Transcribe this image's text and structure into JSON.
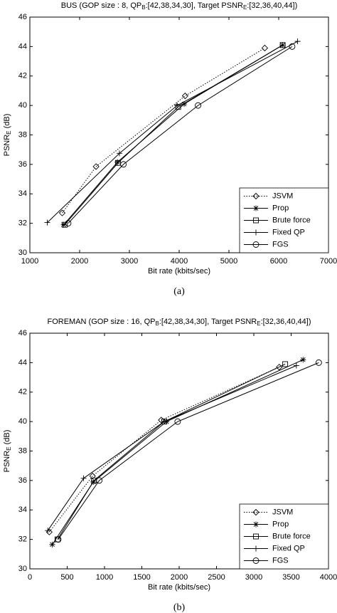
{
  "chart_data": [
    {
      "type": "line",
      "title": [
        "BUS (GOP size : 8, QP",
        "B",
        ":[42,38,34,30], Target PSNR",
        "E",
        ":[32,36,40,44])"
      ],
      "xlabel": "Bit rate (kbits/sec)",
      "ylabel": [
        "PSNR",
        "E",
        " (dB)"
      ],
      "caption": "(a)",
      "xlim": [
        1000,
        7000
      ],
      "xticks": [
        1000,
        2000,
        3000,
        4000,
        5000,
        6000,
        7000
      ],
      "ylim": [
        30,
        46
      ],
      "yticks": [
        30,
        32,
        34,
        36,
        38,
        40,
        42,
        44,
        46
      ],
      "legend": "lower right",
      "series": [
        {
          "name": "JSVM",
          "color": "#000000",
          "linestyle": "dotted",
          "marker": "diamond",
          "x": [
            1650,
            2330,
            4120,
            5720
          ],
          "values": [
            32.7,
            35.85,
            40.65,
            43.9
          ]
        },
        {
          "name": "Prop",
          "color": "#000000",
          "linestyle": "solid",
          "marker": "star",
          "x": [
            1680,
            2760,
            4100,
            6080
          ],
          "values": [
            31.9,
            36.15,
            40.1,
            44.1
          ]
        },
        {
          "name": "Brute force",
          "color": "#000000",
          "linestyle": "solid",
          "marker": "square",
          "x": [
            1700,
            2770,
            3980,
            6080
          ],
          "values": [
            31.9,
            36.1,
            39.9,
            44.1
          ]
        },
        {
          "name": "Fixed QP",
          "color": "#000000",
          "linestyle": "solid",
          "marker": "plus",
          "x": [
            1350,
            2800,
            3960,
            6380
          ],
          "values": [
            32.05,
            36.75,
            40.0,
            44.35
          ]
        },
        {
          "name": "FGS",
          "color": "#000000",
          "linestyle": "solid",
          "marker": "circle",
          "x": [
            1770,
            2880,
            4380,
            6270
          ],
          "values": [
            32.0,
            36.0,
            40.0,
            44.0
          ]
        }
      ]
    },
    {
      "type": "line",
      "title": [
        "FOREMAN (GOP size : 16, QP",
        "B",
        ":[42,38,34,30], Target PSNR",
        "E",
        ":[32,36,40,44])"
      ],
      "xlabel": "Bit rate (kbits/sec)",
      "ylabel": [
        "PSNR",
        "E",
        " (dB)"
      ],
      "caption": "(b)",
      "xlim": [
        0,
        4000
      ],
      "xticks": [
        0,
        500,
        1000,
        1500,
        2000,
        2500,
        3000,
        3500,
        4000
      ],
      "ylim": [
        30,
        46
      ],
      "yticks": [
        30,
        32,
        34,
        36,
        38,
        40,
        42,
        44,
        46
      ],
      "legend": "lower right",
      "series": [
        {
          "name": "JSVM",
          "color": "#000000",
          "linestyle": "dotted",
          "marker": "diamond",
          "x": [
            260,
            840,
            1760,
            3340
          ],
          "values": [
            32.5,
            36.3,
            40.1,
            43.7
          ]
        },
        {
          "name": "Prop",
          "color": "#000000",
          "linestyle": "solid",
          "marker": "star",
          "x": [
            300,
            850,
            1830,
            3660
          ],
          "values": [
            31.65,
            35.9,
            40.0,
            44.2
          ]
        },
        {
          "name": "Brute force",
          "color": "#000000",
          "linestyle": "solid",
          "marker": "square",
          "x": [
            370,
            860,
            1800,
            3420
          ],
          "values": [
            32.0,
            36.0,
            40.0,
            43.9
          ]
        },
        {
          "name": "Fixed QP",
          "color": "#000000",
          "linestyle": "solid",
          "marker": "plus",
          "x": [
            240,
            720,
            1800,
            3570
          ],
          "values": [
            32.6,
            36.15,
            40.0,
            43.8
          ]
        },
        {
          "name": "FGS",
          "color": "#000000",
          "linestyle": "solid",
          "marker": "circle",
          "x": [
            380,
            930,
            1980,
            3870
          ],
          "values": [
            32.0,
            36.0,
            40.0,
            44.0
          ]
        }
      ]
    }
  ]
}
